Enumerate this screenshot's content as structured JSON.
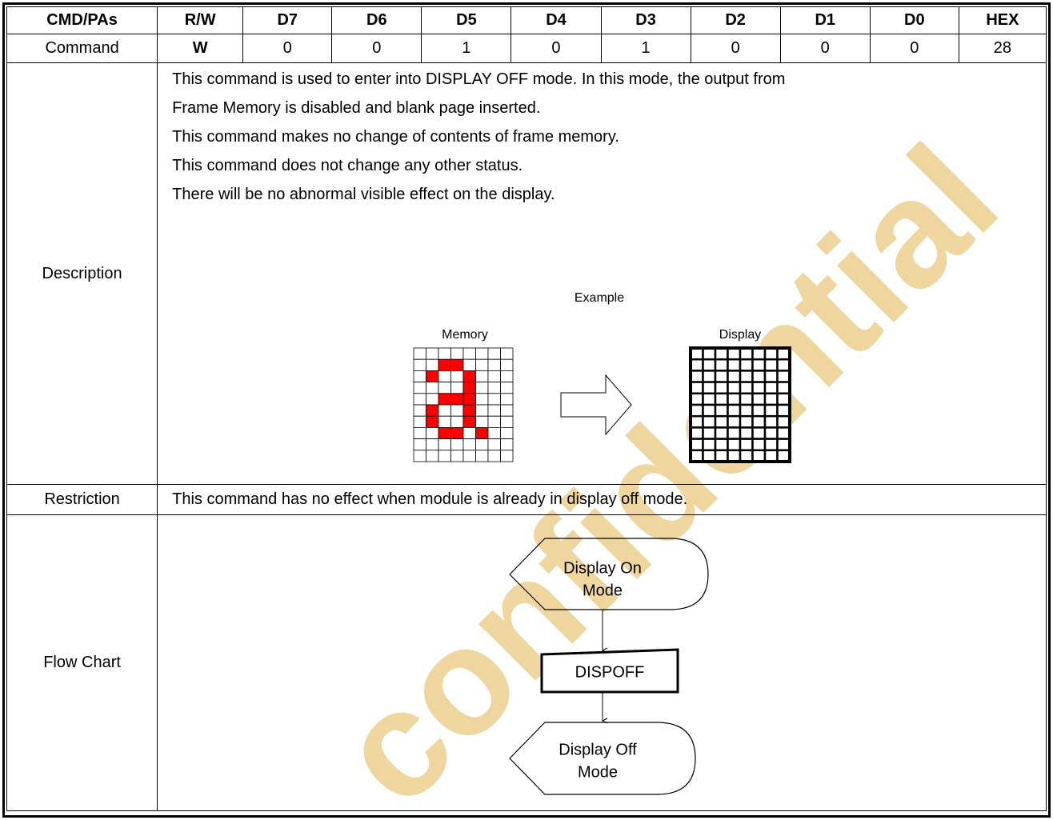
{
  "table": {
    "header": [
      "CMD/PAs",
      "R/W",
      "D7",
      "D6",
      "D5",
      "D4",
      "D3",
      "D2",
      "D1",
      "D0",
      "HEX"
    ],
    "command_row": [
      "Command",
      "W",
      "0",
      "0",
      "1",
      "0",
      "1",
      "0",
      "0",
      "0",
      "28"
    ],
    "description": {
      "label": "Description",
      "lines": [
        "This command is used to enter into DISPLAY OFF mode. In this mode, the output from",
        "Frame Memory is disabled and blank page inserted.",
        "This command makes no change of contents of frame memory.",
        "This command does not change any other status.",
        "There will be no abnormal visible effect on the display."
      ],
      "example": {
        "title": "Example",
        "memory_label": "Memory",
        "display_label": "Display"
      }
    },
    "restriction": {
      "label": "Restriction",
      "text": "This command has no effect when module is already in display off mode."
    },
    "flow_chart": {
      "label": "Flow Chart",
      "nodes": [
        {
          "label": [
            "Display On",
            "Mode"
          ]
        },
        {
          "label": [
            "DISPOFF"
          ]
        },
        {
          "label": [
            "Display Off",
            "Mode"
          ]
        }
      ]
    }
  },
  "watermark": "confidential"
}
